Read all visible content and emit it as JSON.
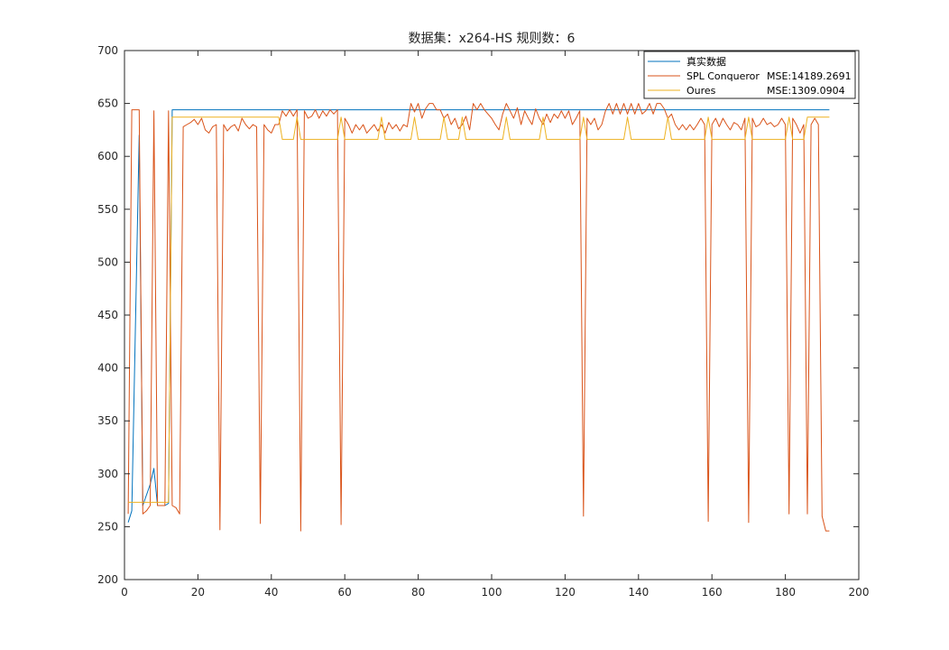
{
  "chart_data": {
    "type": "line",
    "title": "数据集：x264-HS  规则数：6",
    "xlabel": "",
    "ylabel": "",
    "xlim": [
      0,
      200
    ],
    "ylim": [
      200,
      700
    ],
    "x_ticks": [
      "0",
      "20",
      "40",
      "60",
      "80",
      "100",
      "120",
      "140",
      "160",
      "180",
      "200"
    ],
    "y_ticks": [
      "200",
      "250",
      "300",
      "350",
      "400",
      "450",
      "500",
      "550",
      "600",
      "650",
      "700"
    ],
    "grid": false,
    "legend_position": "top-right",
    "series": [
      {
        "name": "真实数据",
        "mse_label": "",
        "color": "#0072bd",
        "points": [
          [
            1,
            254
          ],
          [
            2,
            265
          ],
          [
            4,
            620
          ],
          [
            5,
            270
          ],
          [
            7,
            290
          ],
          [
            8,
            305
          ],
          [
            9,
            270
          ],
          [
            11,
            270
          ],
          [
            12,
            272
          ],
          [
            13,
            644
          ],
          [
            192,
            644
          ]
        ]
      },
      {
        "name": "SPL Conqueror",
        "mse_label": "MSE:14189.2691",
        "color": "#d95319",
        "points": [
          [
            1,
            262
          ],
          [
            2,
            644
          ],
          [
            4,
            644
          ],
          [
            5,
            262
          ],
          [
            6,
            265
          ],
          [
            7,
            270
          ],
          [
            8,
            643
          ],
          [
            9,
            270
          ],
          [
            11,
            270
          ],
          [
            12,
            643
          ],
          [
            13,
            270
          ],
          [
            14,
            268
          ],
          [
            15,
            262
          ],
          [
            16,
            628
          ],
          [
            17,
            630
          ],
          [
            18,
            632
          ],
          [
            19,
            635
          ],
          [
            20,
            630
          ],
          [
            21,
            636
          ],
          [
            22,
            625
          ],
          [
            23,
            622
          ],
          [
            24,
            628
          ],
          [
            25,
            630
          ],
          [
            26,
            247
          ],
          [
            27,
            630
          ],
          [
            28,
            624
          ],
          [
            29,
            628
          ],
          [
            30,
            630
          ],
          [
            31,
            624
          ],
          [
            32,
            636
          ],
          [
            33,
            630
          ],
          [
            34,
            626
          ],
          [
            35,
            630
          ],
          [
            36,
            628
          ],
          [
            37,
            253
          ],
          [
            38,
            630
          ],
          [
            39,
            625
          ],
          [
            40,
            622
          ],
          [
            41,
            630
          ],
          [
            42,
            630
          ],
          [
            43,
            643
          ],
          [
            44,
            638
          ],
          [
            45,
            644
          ],
          [
            46,
            638
          ],
          [
            47,
            644
          ],
          [
            48,
            246
          ],
          [
            49,
            643
          ],
          [
            50,
            636
          ],
          [
            51,
            638
          ],
          [
            52,
            644
          ],
          [
            53,
            636
          ],
          [
            54,
            643
          ],
          [
            55,
            638
          ],
          [
            56,
            644
          ],
          [
            57,
            640
          ],
          [
            58,
            644
          ],
          [
            59,
            252
          ],
          [
            60,
            636
          ],
          [
            61,
            630
          ],
          [
            62,
            622
          ],
          [
            63,
            630
          ],
          [
            64,
            625
          ],
          [
            65,
            630
          ],
          [
            66,
            622
          ],
          [
            67,
            626
          ],
          [
            68,
            630
          ],
          [
            69,
            624
          ],
          [
            70,
            630
          ],
          [
            71,
            622
          ],
          [
            72,
            632
          ],
          [
            73,
            626
          ],
          [
            74,
            630
          ],
          [
            75,
            624
          ],
          [
            76,
            630
          ],
          [
            77,
            628
          ],
          [
            78,
            650
          ],
          [
            79,
            642
          ],
          [
            80,
            650
          ],
          [
            81,
            636
          ],
          [
            82,
            645
          ],
          [
            83,
            650
          ],
          [
            84,
            650
          ],
          [
            85,
            644
          ],
          [
            86,
            644
          ],
          [
            87,
            636
          ],
          [
            88,
            640
          ],
          [
            89,
            630
          ],
          [
            90,
            636
          ],
          [
            91,
            626
          ],
          [
            92,
            630
          ],
          [
            93,
            638
          ],
          [
            94,
            625
          ],
          [
            95,
            650
          ],
          [
            96,
            644
          ],
          [
            97,
            650
          ],
          [
            98,
            644
          ],
          [
            99,
            640
          ],
          [
            100,
            636
          ],
          [
            101,
            630
          ],
          [
            102,
            625
          ],
          [
            103,
            640
          ],
          [
            104,
            650
          ],
          [
            105,
            643
          ],
          [
            106,
            636
          ],
          [
            107,
            646
          ],
          [
            108,
            630
          ],
          [
            109,
            643
          ],
          [
            110,
            636
          ],
          [
            111,
            630
          ],
          [
            112,
            645
          ],
          [
            113,
            636
          ],
          [
            114,
            630
          ],
          [
            115,
            640
          ],
          [
            116,
            632
          ],
          [
            117,
            640
          ],
          [
            118,
            636
          ],
          [
            119,
            643
          ],
          [
            120,
            636
          ],
          [
            121,
            643
          ],
          [
            122,
            630
          ],
          [
            123,
            636
          ],
          [
            124,
            643
          ],
          [
            125,
            260
          ],
          [
            126,
            636
          ],
          [
            127,
            630
          ],
          [
            128,
            636
          ],
          [
            129,
            625
          ],
          [
            130,
            630
          ],
          [
            131,
            643
          ],
          [
            132,
            650
          ],
          [
            133,
            640
          ],
          [
            134,
            650
          ],
          [
            135,
            640
          ],
          [
            136,
            650
          ],
          [
            137,
            640
          ],
          [
            138,
            650
          ],
          [
            139,
            640
          ],
          [
            140,
            650
          ],
          [
            141,
            640
          ],
          [
            142,
            643
          ],
          [
            143,
            650
          ],
          [
            144,
            640
          ],
          [
            145,
            650
          ],
          [
            146,
            650
          ],
          [
            147,
            645
          ],
          [
            148,
            636
          ],
          [
            149,
            640
          ],
          [
            150,
            630
          ],
          [
            151,
            625
          ],
          [
            152,
            630
          ],
          [
            153,
            625
          ],
          [
            154,
            630
          ],
          [
            155,
            625
          ],
          [
            156,
            630
          ],
          [
            157,
            636
          ],
          [
            158,
            630
          ],
          [
            159,
            255
          ],
          [
            160,
            630
          ],
          [
            161,
            636
          ],
          [
            162,
            628
          ],
          [
            163,
            636
          ],
          [
            164,
            630
          ],
          [
            165,
            625
          ],
          [
            166,
            632
          ],
          [
            167,
            630
          ],
          [
            168,
            625
          ],
          [
            169,
            636
          ],
          [
            170,
            254
          ],
          [
            171,
            636
          ],
          [
            172,
            628
          ],
          [
            173,
            630
          ],
          [
            174,
            636
          ],
          [
            175,
            630
          ],
          [
            176,
            632
          ],
          [
            177,
            628
          ],
          [
            178,
            630
          ],
          [
            179,
            636
          ],
          [
            180,
            630
          ],
          [
            181,
            262
          ],
          [
            182,
            636
          ],
          [
            183,
            630
          ],
          [
            184,
            622
          ],
          [
            185,
            630
          ],
          [
            186,
            262
          ],
          [
            187,
            630
          ],
          [
            188,
            636
          ],
          [
            189,
            630
          ],
          [
            190,
            260
          ],
          [
            191,
            246
          ],
          [
            192,
            246
          ]
        ]
      },
      {
        "name": "Oures",
        "mse_label": "MSE:1309.0904",
        "color": "#edb120",
        "points": [
          [
            1,
            273
          ],
          [
            12,
            273
          ],
          [
            13,
            637
          ],
          [
            42,
            637
          ],
          [
            43,
            616
          ],
          [
            46,
            616
          ],
          [
            47,
            637
          ],
          [
            48,
            616
          ],
          [
            58,
            616
          ],
          [
            59,
            637
          ],
          [
            60,
            616
          ],
          [
            69,
            616
          ],
          [
            70,
            637
          ],
          [
            71,
            616
          ],
          [
            78,
            616
          ],
          [
            79,
            637
          ],
          [
            80,
            616
          ],
          [
            86,
            616
          ],
          [
            87,
            637
          ],
          [
            88,
            616
          ],
          [
            91,
            616
          ],
          [
            92,
            637
          ],
          [
            93,
            616
          ],
          [
            103,
            616
          ],
          [
            104,
            637
          ],
          [
            105,
            616
          ],
          [
            113,
            616
          ],
          [
            114,
            637
          ],
          [
            115,
            616
          ],
          [
            124,
            616
          ],
          [
            125,
            637
          ],
          [
            126,
            616
          ],
          [
            136,
            616
          ],
          [
            137,
            637
          ],
          [
            138,
            616
          ],
          [
            147,
            616
          ],
          [
            148,
            637
          ],
          [
            149,
            616
          ],
          [
            158,
            616
          ],
          [
            159,
            637
          ],
          [
            160,
            616
          ],
          [
            169,
            616
          ],
          [
            170,
            637
          ],
          [
            171,
            616
          ],
          [
            180,
            616
          ],
          [
            181,
            637
          ],
          [
            182,
            616
          ],
          [
            185,
            616
          ],
          [
            186,
            637
          ],
          [
            192,
            637
          ]
        ]
      }
    ]
  }
}
